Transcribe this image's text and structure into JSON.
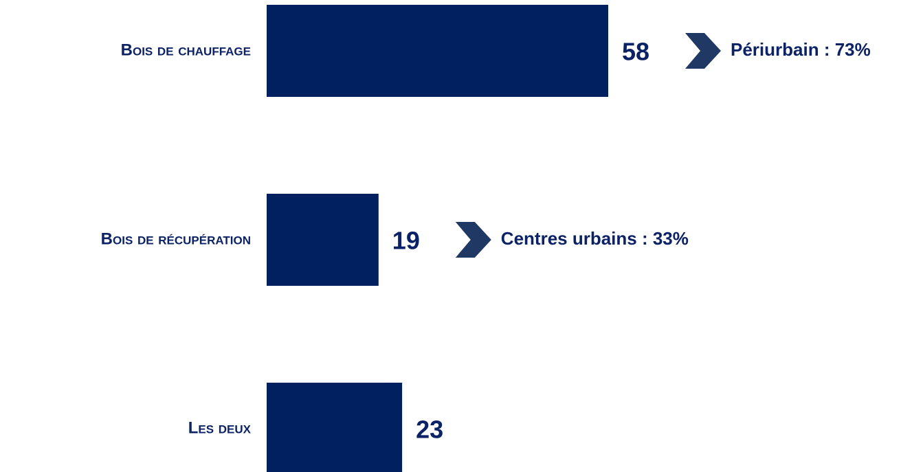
{
  "chart_data": {
    "type": "bar",
    "categories": [
      "Bois de chauffage",
      "Bois de récupération",
      "Les deux"
    ],
    "values": [
      58,
      19,
      23
    ],
    "color": "#002060",
    "annotations": [
      "Périurbain : 73%",
      "Centres urbains : 33%"
    ]
  }
}
